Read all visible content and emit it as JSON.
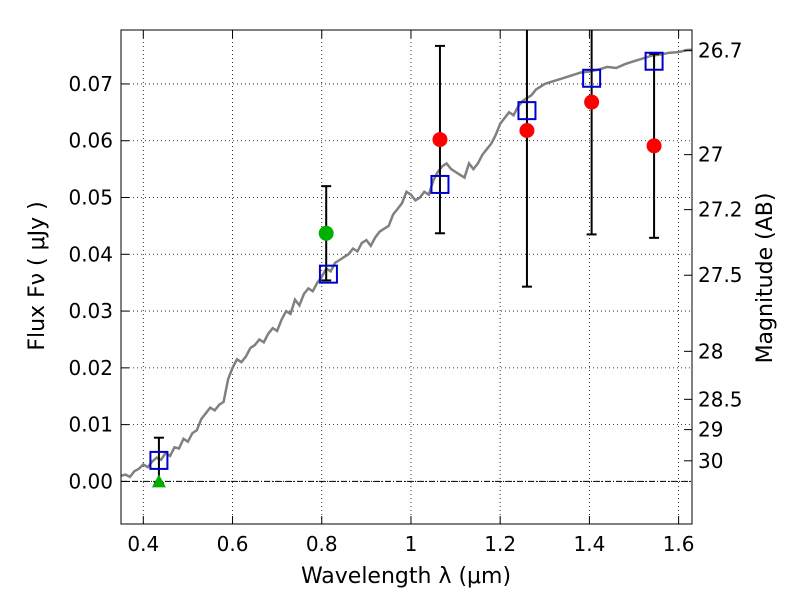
{
  "chart_data": {
    "type": "scatter",
    "xlabel": "Wavelength  λ (μm)",
    "ylabel": "Flux  Fν  ( μJy )",
    "ylabel_right": "Magnitude (AB)",
    "xlim": [
      0.35,
      1.63
    ],
    "ylim": [
      -0.0075,
      0.0795
    ],
    "grid": true,
    "x_ticks": [
      {
        "value": 0.4,
        "label": "0.4"
      },
      {
        "value": 0.6,
        "label": "0.6"
      },
      {
        "value": 0.8,
        "label": "0.8"
      },
      {
        "value": 1.0,
        "label": "1"
      },
      {
        "value": 1.2,
        "label": "1.2"
      },
      {
        "value": 1.4,
        "label": "1.4"
      },
      {
        "value": 1.6,
        "label": "1.6"
      }
    ],
    "y_ticks": [
      {
        "value": 0.0,
        "label": "0.00"
      },
      {
        "value": 0.01,
        "label": "0.01"
      },
      {
        "value": 0.02,
        "label": "0.02"
      },
      {
        "value": 0.03,
        "label": "0.03"
      },
      {
        "value": 0.04,
        "label": "0.04"
      },
      {
        "value": 0.05,
        "label": "0.05"
      },
      {
        "value": 0.06,
        "label": "0.06"
      },
      {
        "value": 0.07,
        "label": "0.07"
      }
    ],
    "right_ticks": [
      {
        "mag": 26.7,
        "label": "26.7"
      },
      {
        "mag": 27.0,
        "label": "27"
      },
      {
        "mag": 27.2,
        "label": "27.2"
      },
      {
        "mag": 27.5,
        "label": "27.5"
      },
      {
        "mag": 28.0,
        "label": "28"
      },
      {
        "mag": 28.5,
        "label": "28.5"
      },
      {
        "mag": 29.0,
        "label": "29"
      },
      {
        "mag": 30.0,
        "label": "30"
      }
    ],
    "zero_line": 0,
    "colors": {
      "model": "#808080",
      "observed_red": "#ff0000",
      "observed_green": "#00b000",
      "model_band": "#0000cc",
      "errorbar": "#000000"
    },
    "model_spectrum": {
      "x": [
        0.35,
        0.36,
        0.37,
        0.38,
        0.39,
        0.4,
        0.41,
        0.42,
        0.43,
        0.44,
        0.45,
        0.46,
        0.47,
        0.48,
        0.49,
        0.5,
        0.51,
        0.52,
        0.53,
        0.54,
        0.55,
        0.56,
        0.57,
        0.58,
        0.59,
        0.6,
        0.61,
        0.62,
        0.63,
        0.64,
        0.65,
        0.66,
        0.67,
        0.68,
        0.69,
        0.7,
        0.71,
        0.72,
        0.73,
        0.74,
        0.75,
        0.76,
        0.77,
        0.78,
        0.79,
        0.8,
        0.81,
        0.82,
        0.83,
        0.84,
        0.85,
        0.86,
        0.87,
        0.88,
        0.89,
        0.9,
        0.91,
        0.92,
        0.93,
        0.94,
        0.95,
        0.96,
        0.97,
        0.98,
        0.99,
        1.0,
        1.01,
        1.02,
        1.03,
        1.04,
        1.05,
        1.06,
        1.07,
        1.08,
        1.09,
        1.1,
        1.11,
        1.12,
        1.13,
        1.14,
        1.15,
        1.16,
        1.17,
        1.18,
        1.19,
        1.2,
        1.21,
        1.22,
        1.23,
        1.24,
        1.25,
        1.26,
        1.27,
        1.28,
        1.3,
        1.32,
        1.34,
        1.36,
        1.38,
        1.4,
        1.42,
        1.44,
        1.46,
        1.48,
        1.5,
        1.52,
        1.54,
        1.56,
        1.58,
        1.6,
        1.62,
        1.63
      ],
      "y": [
        0.001,
        0.0012,
        0.0008,
        0.0018,
        0.0022,
        0.003,
        0.0025,
        0.0035,
        0.0042,
        0.0038,
        0.005,
        0.0045,
        0.006,
        0.0058,
        0.0075,
        0.007,
        0.0085,
        0.009,
        0.011,
        0.012,
        0.013,
        0.0125,
        0.0135,
        0.014,
        0.018,
        0.02,
        0.0215,
        0.021,
        0.022,
        0.0235,
        0.024,
        0.025,
        0.0245,
        0.026,
        0.027,
        0.0265,
        0.0285,
        0.03,
        0.0295,
        0.032,
        0.031,
        0.033,
        0.034,
        0.0335,
        0.035,
        0.036,
        0.0375,
        0.037,
        0.0385,
        0.039,
        0.0395,
        0.04,
        0.041,
        0.0405,
        0.042,
        0.0425,
        0.0415,
        0.043,
        0.044,
        0.0445,
        0.045,
        0.047,
        0.048,
        0.049,
        0.051,
        0.0505,
        0.0495,
        0.05,
        0.051,
        0.0505,
        0.053,
        0.0545,
        0.0555,
        0.056,
        0.055,
        0.0545,
        0.054,
        0.0535,
        0.056,
        0.055,
        0.056,
        0.0575,
        0.0585,
        0.0595,
        0.061,
        0.063,
        0.064,
        0.065,
        0.0645,
        0.066,
        0.067,
        0.0675,
        0.068,
        0.069,
        0.07,
        0.0705,
        0.071,
        0.0715,
        0.072,
        0.0722,
        0.0725,
        0.073,
        0.0728,
        0.0735,
        0.074,
        0.0745,
        0.075,
        0.0752,
        0.0755,
        0.0756,
        0.076,
        0.076
      ]
    },
    "observed_red": [
      {
        "x": 1.065,
        "y": 0.0602,
        "err": 0.0165
      },
      {
        "x": 1.26,
        "y": 0.0618,
        "err": 0.0275
      },
      {
        "x": 1.405,
        "y": 0.0668,
        "err": 0.0233
      },
      {
        "x": 1.545,
        "y": 0.0591,
        "err": 0.0162
      }
    ],
    "observed_green": [
      {
        "x": 0.81,
        "y": 0.0437,
        "err": 0.0083
      }
    ],
    "upper_limit": [
      {
        "x": 0.435,
        "y": 0.0
      }
    ],
    "model_band": [
      {
        "x": 0.435,
        "y": 0.0037,
        "err": 0.004
      },
      {
        "x": 0.815,
        "y": 0.0365
      },
      {
        "x": 1.065,
        "y": 0.0523
      },
      {
        "x": 1.26,
        "y": 0.0653
      },
      {
        "x": 1.405,
        "y": 0.071
      },
      {
        "x": 1.545,
        "y": 0.074
      }
    ]
  }
}
